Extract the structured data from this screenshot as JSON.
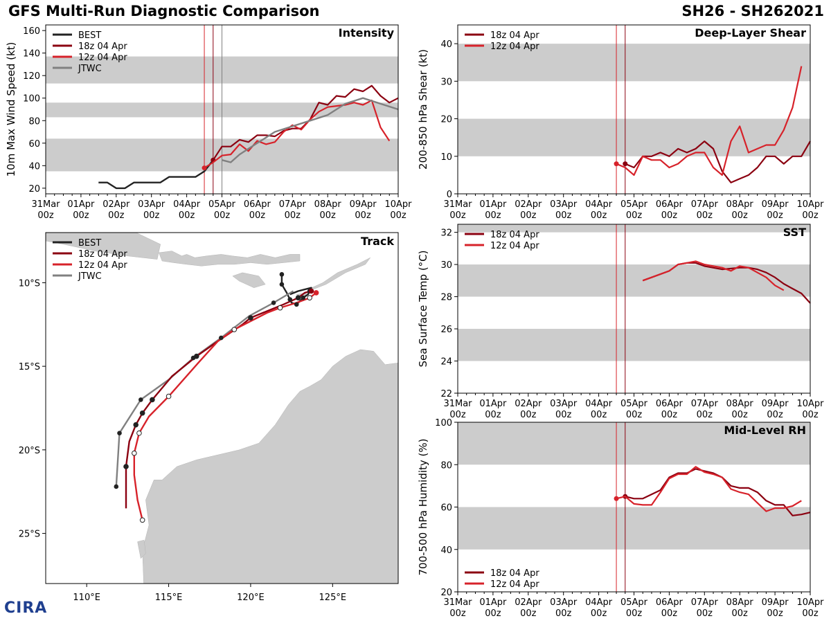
{
  "header": {
    "title_left": "GFS Multi-Run Diagnostic Comparison",
    "title_right": "SH26 - SH262021"
  },
  "logo": {
    "text": "CIRA"
  },
  "colors": {
    "best": "#222222",
    "run18": "#8b0010",
    "run12": "#d7222a",
    "jtwc": "#808080",
    "band": "#cccccc",
    "land": "#cccccc"
  },
  "time_axis": {
    "ticks": [
      {
        "day": "31Mar",
        "hour": "00z"
      },
      {
        "day": "01Apr",
        "hour": "00z"
      },
      {
        "day": "02Apr",
        "hour": "00z"
      },
      {
        "day": "03Apr",
        "hour": "00z"
      },
      {
        "day": "04Apr",
        "hour": "00z"
      },
      {
        "day": "05Apr",
        "hour": "00z"
      },
      {
        "day": "06Apr",
        "hour": "00z"
      },
      {
        "day": "07Apr",
        "hour": "00z"
      },
      {
        "day": "08Apr",
        "hour": "00z"
      },
      {
        "day": "09Apr",
        "hour": "00z"
      },
      {
        "day": "10Apr",
        "hour": "00z"
      }
    ],
    "xlim_days": [
      0,
      10
    ]
  },
  "chart_data": [
    {
      "id": "intensity",
      "type": "line",
      "title": "Intensity",
      "ylabel": "10m Max Wind Speed (kt)",
      "ylim": [
        15,
        165
      ],
      "yticks": [
        20,
        40,
        60,
        80,
        100,
        120,
        140,
        160
      ],
      "bands": [
        [
          35,
          64
        ],
        [
          83,
          96
        ],
        [
          113,
          137
        ]
      ],
      "init_lines": [
        {
          "x": 4.5,
          "color": "run12"
        },
        {
          "x": 4.75,
          "color": "run18"
        },
        {
          "x": 5.0,
          "color": "jtwc"
        }
      ],
      "legend": [
        {
          "label": "BEST",
          "color": "best"
        },
        {
          "label": "18z 04 Apr",
          "color": "run18"
        },
        {
          "label": "12z 04 Apr",
          "color": "run12"
        },
        {
          "label": "JTWC",
          "color": "jtwc"
        }
      ],
      "series": [
        {
          "name": "BEST",
          "color": "best",
          "x": [
            1.5,
            1.75,
            2.0,
            2.25,
            2.5,
            2.75,
            3.0,
            3.25,
            3.5,
            3.75,
            4.0,
            4.25,
            4.5,
            4.75
          ],
          "y": [
            25,
            25,
            20,
            20,
            25,
            25,
            25,
            25,
            30,
            30,
            30,
            30,
            35,
            45
          ]
        },
        {
          "name": "18z 04 Apr",
          "color": "run18",
          "start_marker": true,
          "x": [
            4.75,
            5.0,
            5.25,
            5.5,
            5.75,
            6.0,
            6.25,
            6.5,
            6.75,
            7.0,
            7.25,
            7.5,
            7.75,
            8.0,
            8.25,
            8.5,
            8.75,
            9.0,
            9.25,
            9.5,
            9.75,
            10.0
          ],
          "y": [
            45,
            57,
            57,
            63,
            61,
            67,
            67,
            66,
            71,
            73,
            73,
            81,
            96,
            94,
            102,
            101,
            108,
            106,
            111,
            102,
            96,
            100
          ]
        },
        {
          "name": "12z 04 Apr",
          "color": "run12",
          "start_marker": true,
          "x": [
            4.5,
            4.75,
            5.0,
            5.25,
            5.5,
            5.75,
            6.0,
            6.25,
            6.5,
            6.75,
            7.0,
            7.25,
            7.5,
            7.75,
            8.0,
            8.25,
            8.5,
            8.75,
            9.0,
            9.25,
            9.5,
            9.75
          ],
          "y": [
            38,
            43,
            49,
            50,
            59,
            53,
            62,
            59,
            61,
            70,
            76,
            72,
            81,
            88,
            92,
            93,
            94,
            96,
            94,
            98,
            74,
            62
          ]
        },
        {
          "name": "JTWC",
          "color": "jtwc",
          "x": [
            5.0,
            5.25,
            5.5,
            5.75,
            6.0,
            6.5,
            7.0,
            7.5,
            8.0,
            8.5,
            9.0,
            10.0
          ],
          "y": [
            45,
            43,
            50,
            55,
            60,
            70,
            75,
            80,
            85,
            95,
            100,
            90
          ]
        }
      ]
    },
    {
      "id": "shear",
      "type": "line",
      "title": "Deep-Layer Shear",
      "ylabel": "200-850 hPa Shear (kt)",
      "ylim": [
        0,
        45
      ],
      "yticks": [
        0,
        10,
        20,
        30,
        40
      ],
      "bands": [
        [
          10,
          20
        ],
        [
          30,
          40
        ]
      ],
      "init_lines": [
        {
          "x": 4.5,
          "color": "run12"
        },
        {
          "x": 4.75,
          "color": "run18"
        }
      ],
      "legend": [
        {
          "label": "18z 04 Apr",
          "color": "run18"
        },
        {
          "label": "12z 04 Apr",
          "color": "run12"
        }
      ],
      "series": [
        {
          "name": "18z 04 Apr",
          "color": "run18",
          "start_marker": true,
          "x": [
            4.75,
            5.0,
            5.25,
            5.5,
            5.75,
            6.0,
            6.25,
            6.5,
            6.75,
            7.0,
            7.25,
            7.5,
            7.75,
            8.0,
            8.25,
            8.5,
            8.75,
            9.0,
            9.25,
            9.5,
            9.75,
            10.0
          ],
          "y": [
            8,
            7,
            10,
            10,
            11,
            10,
            12,
            11,
            12,
            14,
            12,
            6,
            3,
            4,
            5,
            7,
            10,
            10,
            8,
            10,
            10,
            14
          ]
        },
        {
          "name": "12z 04 Apr",
          "color": "run12",
          "start_marker": true,
          "x": [
            4.5,
            4.75,
            5.0,
            5.25,
            5.5,
            5.75,
            6.0,
            6.25,
            6.5,
            6.75,
            7.0,
            7.25,
            7.5,
            7.75,
            8.0,
            8.25,
            8.5,
            8.75,
            9.0,
            9.25,
            9.5,
            9.75
          ],
          "y": [
            8,
            7,
            5,
            10,
            9,
            9,
            7,
            8,
            10,
            11,
            11,
            7,
            5,
            14,
            18,
            11,
            12,
            13,
            13,
            17,
            23,
            34
          ]
        }
      ]
    },
    {
      "id": "sst",
      "type": "line",
      "title": "SST",
      "ylabel": "Sea Surface Temp (°C)",
      "ylim": [
        22,
        32.5
      ],
      "yticks": [
        22,
        24,
        26,
        28,
        30,
        32
      ],
      "bands": [
        [
          24,
          26
        ],
        [
          28,
          30
        ],
        [
          32,
          32.5
        ]
      ],
      "init_lines": [
        {
          "x": 4.5,
          "color": "run12"
        },
        {
          "x": 4.75,
          "color": "run18"
        }
      ],
      "legend": [
        {
          "label": "18z 04 Apr",
          "color": "run18"
        },
        {
          "label": "12z 04 Apr",
          "color": "run12"
        }
      ],
      "series": [
        {
          "name": "18z 04 Apr",
          "color": "run18",
          "x": [
            5.25,
            5.5,
            6.0,
            6.25,
            6.5,
            6.75,
            7.0,
            7.5,
            8.0,
            8.25,
            8.5,
            8.75,
            9.0,
            9.25,
            9.5,
            9.75,
            10.0
          ],
          "y": [
            29.0,
            29.2,
            29.6,
            30.0,
            30.1,
            30.1,
            29.9,
            29.7,
            29.8,
            29.8,
            29.7,
            29.5,
            29.2,
            28.8,
            28.5,
            28.2,
            27.6
          ]
        },
        {
          "name": "12z 04 Apr",
          "color": "run12",
          "x": [
            5.25,
            5.5,
            6.0,
            6.25,
            6.5,
            6.75,
            7.0,
            7.5,
            7.75,
            8.0,
            8.25,
            8.5,
            8.75,
            9.0,
            9.25
          ],
          "y": [
            29.0,
            29.2,
            29.6,
            30.0,
            30.1,
            30.2,
            30.0,
            29.8,
            29.6,
            29.9,
            29.8,
            29.5,
            29.2,
            28.7,
            28.4
          ]
        }
      ]
    },
    {
      "id": "rh",
      "type": "line",
      "title": "Mid-Level RH",
      "ylabel": "700-500 hPa Humidity (%)",
      "ylim": [
        20,
        100
      ],
      "yticks": [
        20,
        40,
        60,
        80,
        100
      ],
      "bands": [
        [
          40,
          60
        ],
        [
          80,
          100
        ]
      ],
      "init_lines": [
        {
          "x": 4.5,
          "color": "run12"
        },
        {
          "x": 4.75,
          "color": "run18"
        }
      ],
      "legend": [
        {
          "label": "18z 04 Apr",
          "color": "run18"
        },
        {
          "label": "12z 04 Apr",
          "color": "run12"
        }
      ],
      "series": [
        {
          "name": "18z 04 Apr",
          "color": "run18",
          "start_marker": true,
          "x": [
            4.75,
            5.0,
            5.25,
            5.5,
            5.75,
            6.0,
            6.25,
            6.5,
            6.75,
            7.0,
            7.25,
            7.5,
            7.75,
            8.0,
            8.25,
            8.5,
            8.75,
            9.0,
            9.25,
            9.5,
            9.75,
            10.0
          ],
          "y": [
            65,
            64,
            64,
            66,
            68,
            74,
            76,
            76,
            78,
            77,
            76,
            74,
            70,
            69,
            69,
            67,
            63,
            61,
            61,
            56,
            56.5,
            57.5
          ]
        },
        {
          "name": "12z 04 Apr",
          "color": "run12",
          "start_marker": true,
          "x": [
            4.5,
            4.75,
            5.0,
            5.25,
            5.5,
            5.75,
            6.0,
            6.25,
            6.5,
            6.75,
            7.0,
            7.25,
            7.5,
            7.75,
            8.0,
            8.25,
            8.5,
            8.75,
            9.0,
            9.25,
            9.5,
            9.75
          ],
          "y": [
            64,
            65,
            61.5,
            61,
            61,
            67,
            73.5,
            75.5,
            75.5,
            79,
            76.5,
            75.5,
            74,
            68.5,
            67,
            66,
            62,
            58,
            59.5,
            59.5,
            60.5,
            63
          ]
        }
      ]
    },
    {
      "id": "track",
      "type": "scatter",
      "title": "Track",
      "xlim": [
        107.5,
        129.0
      ],
      "ylim": [
        -28.0,
        -7.0
      ],
      "xticks": [
        {
          "v": 110,
          "label": "110°E"
        },
        {
          "v": 115,
          "label": "115°E"
        },
        {
          "v": 120,
          "label": "120°E"
        },
        {
          "v": 125,
          "label": "125°E"
        }
      ],
      "yticks": [
        {
          "v": -10,
          "label": "10°S"
        },
        {
          "v": -15,
          "label": "15°S"
        },
        {
          "v": -20,
          "label": "20°S"
        },
        {
          "v": -25,
          "label": "25°S"
        }
      ],
      "legend": [
        {
          "label": "BEST",
          "color": "best"
        },
        {
          "label": "18z 04 Apr",
          "color": "run18"
        },
        {
          "label": "12z 04 Apr",
          "color": "run12"
        },
        {
          "label": "JTWC",
          "color": "jtwc"
        }
      ],
      "series": [
        {
          "name": "BEST",
          "color": "best",
          "markers": [],
          "lon": [
            121.9,
            121.9,
            122.2,
            122.4,
            122.5,
            122.8,
            123.0,
            123.2,
            123.5,
            123.6,
            123.7,
            122.9,
            122.4
          ],
          "lat": [
            -9.5,
            -10.1,
            -10.6,
            -11.0,
            -11.2,
            -11.3,
            -11.1,
            -10.9,
            -10.7,
            -10.5,
            -10.3,
            -10.5,
            -10.7
          ]
        },
        {
          "name": "JTWC",
          "color": "jtwc",
          "markers": [],
          "lon": [
            122.6,
            121.4,
            119.9,
            118.2,
            116.5,
            115.0,
            113.3,
            112.0,
            111.8
          ],
          "lat": [
            -10.5,
            -11.2,
            -12.0,
            -13.3,
            -14.5,
            -15.8,
            -17.0,
            -19.0,
            -22.2
          ]
        },
        {
          "name": "18z 04 Apr",
          "color": "run18",
          "markers": "filled",
          "lon": [
            123.7,
            123.3,
            122.9,
            122.0,
            121.0,
            120.0,
            119.5,
            118.0,
            116.7,
            115.2,
            114.0,
            113.4,
            113.0,
            112.6,
            112.4,
            112.4
          ],
          "lat": [
            -10.5,
            -10.6,
            -10.9,
            -11.3,
            -11.7,
            -12.1,
            -12.5,
            -13.5,
            -14.4,
            -15.6,
            -17.0,
            -17.8,
            -18.5,
            -19.5,
            -21.0,
            -23.5
          ],
          "marker_idx": [
            2,
            5,
            8,
            10,
            11,
            12,
            14
          ]
        },
        {
          "name": "12z 04 Apr",
          "color": "run12",
          "markers": "open",
          "lon": [
            124.0,
            123.6,
            122.8,
            121.8,
            121.0,
            120.2,
            119.0,
            118.0,
            116.8,
            115.0,
            113.8,
            113.2,
            112.9,
            112.9,
            113.1,
            113.4
          ],
          "lat": [
            -10.6,
            -10.9,
            -11.2,
            -11.5,
            -11.8,
            -12.2,
            -12.8,
            -13.5,
            -14.8,
            -16.8,
            -18.0,
            -19.0,
            -20.2,
            -21.5,
            -23.0,
            -24.2
          ],
          "marker_idx": [
            1,
            3,
            6,
            9,
            11,
            12,
            15
          ]
        }
      ],
      "best_marker_idx": [
        0,
        1,
        3,
        5,
        7,
        9
      ],
      "jtwc_marker_idx": [
        1,
        3,
        4,
        6,
        7,
        8
      ]
    }
  ]
}
